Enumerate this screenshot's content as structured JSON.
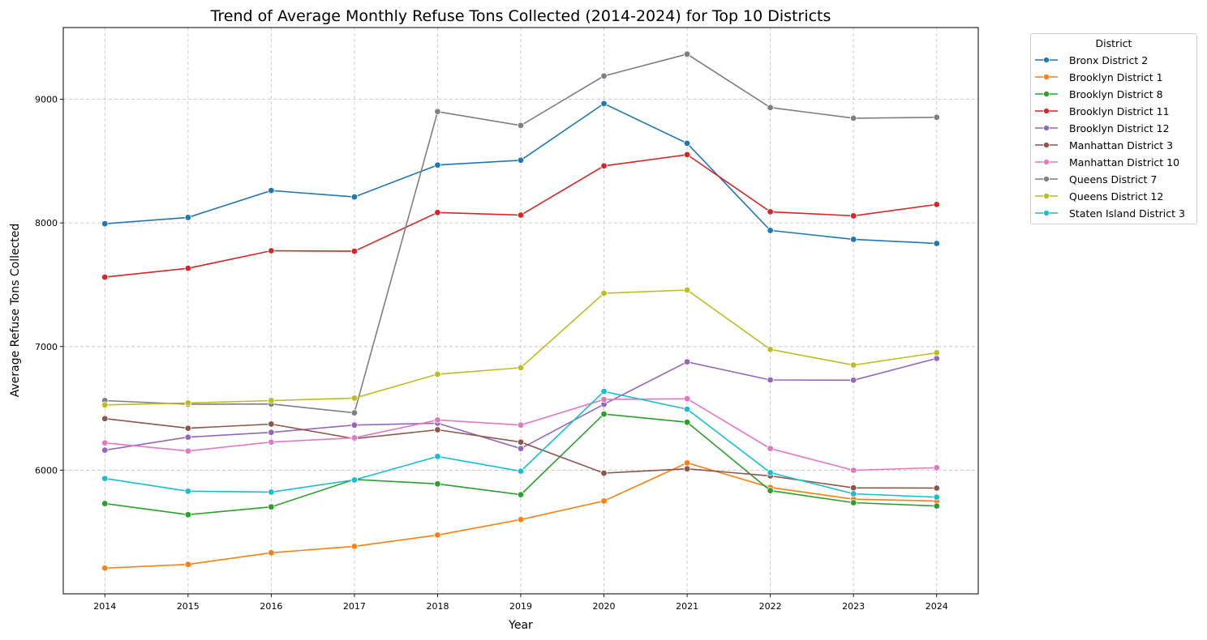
{
  "chart_data": {
    "type": "line",
    "title": "Trend of Average Monthly Refuse Tons Collected (2014-2024) for Top 10 Districts",
    "xlabel": "Year",
    "ylabel": "Average Refuse Tons Collected",
    "x": [
      2014,
      2015,
      2016,
      2017,
      2018,
      2019,
      2020,
      2021,
      2022,
      2023,
      2024
    ],
    "x_tick_labels": [
      "2014",
      "2015",
      "2016",
      "2017",
      "2018",
      "2019",
      "2020",
      "2021",
      "2022",
      "2023",
      "2024"
    ],
    "y_ticks": [
      6000,
      7000,
      8000,
      9000
    ],
    "y_tick_labels": [
      "6000",
      "7000",
      "8000",
      "9000"
    ],
    "xlim": [
      2013.5,
      2024.5
    ],
    "ylim": [
      5000,
      9580
    ],
    "grid": true,
    "grid_style": "dashed",
    "marker": "circle",
    "legend": {
      "title": "District",
      "placement": "outside-top-right"
    },
    "series": [
      {
        "name": "Bronx District 2",
        "color": "#1f77b4",
        "values": [
          7993,
          8044,
          8262,
          8210,
          8468,
          8507,
          8965,
          8644,
          7939,
          7867,
          7834
        ]
      },
      {
        "name": "Brooklyn District 1",
        "color": "#ff7f0e",
        "values": [
          5208,
          5238,
          5332,
          5384,
          5476,
          5601,
          5751,
          6059,
          5860,
          5765,
          5751
        ]
      },
      {
        "name": "Brooklyn District 8",
        "color": "#2ca02c",
        "values": [
          5730,
          5640,
          5703,
          5925,
          5889,
          5802,
          6454,
          6388,
          5835,
          5737,
          5710
        ]
      },
      {
        "name": "Brooklyn District 11",
        "color": "#d62728",
        "values": [
          7561,
          7633,
          7775,
          7771,
          8084,
          8063,
          8461,
          8552,
          8090,
          8057,
          8149
        ]
      },
      {
        "name": "Brooklyn District 12",
        "color": "#9467bd",
        "values": [
          6162,
          6267,
          6306,
          6365,
          6380,
          6175,
          6533,
          6876,
          6730,
          6728,
          6904
        ]
      },
      {
        "name": "Manhattan District 3",
        "color": "#8c564b",
        "values": [
          6417,
          6339,
          6373,
          6255,
          6327,
          6227,
          5976,
          6011,
          5954,
          5857,
          5855
        ]
      },
      {
        "name": "Manhattan District 10",
        "color": "#e377c2",
        "values": [
          6221,
          6155,
          6227,
          6262,
          6406,
          6365,
          6572,
          6578,
          6175,
          5999,
          6020
        ]
      },
      {
        "name": "Queens District 7",
        "color": "#7f7f7f",
        "values": [
          6563,
          6533,
          6535,
          6464,
          8900,
          8788,
          9188,
          9365,
          8933,
          8847,
          8854
        ]
      },
      {
        "name": "Queens District 12",
        "color": "#bcbd22",
        "values": [
          6528,
          6544,
          6563,
          6583,
          6776,
          6829,
          7431,
          7457,
          6977,
          6850,
          6950
        ]
      },
      {
        "name": "Staten Island District 3",
        "color": "#17becf",
        "values": [
          5933,
          5830,
          5823,
          5921,
          6111,
          5992,
          6637,
          6493,
          5980,
          5809,
          5782
        ]
      }
    ]
  }
}
